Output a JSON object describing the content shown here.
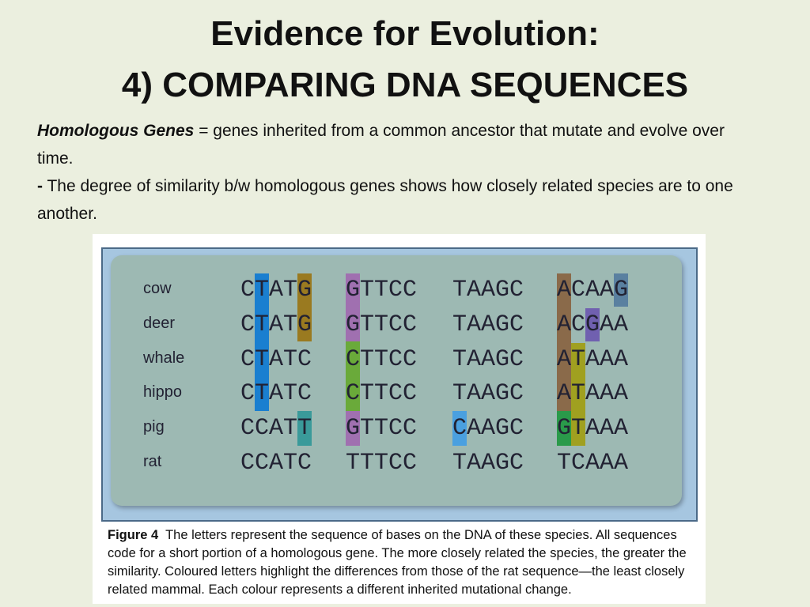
{
  "title": {
    "line1": "Evidence for Evolution:",
    "line2": "4) COMPARING DNA SEQUENCES"
  },
  "paragraphs": [
    {
      "term": "Homologous Genes",
      "text": " = genes inherited from a common ancestor that mutate and evolve over time."
    },
    {
      "term": "-",
      "text": " The degree of similarity b/w homologous genes shows how closely related species are to one another."
    }
  ],
  "figure": {
    "rows": [
      {
        "species": "cow",
        "groups": [
          "CTATG",
          "GTTCC",
          "TAAGC",
          "ACAAG"
        ]
      },
      {
        "species": "deer",
        "groups": [
          "CTATG",
          "GTTCC",
          "TAAGC",
          "ACGAA"
        ]
      },
      {
        "species": "whale",
        "groups": [
          "CTATC",
          "CTTCC",
          "TAAGC",
          "ATAAA"
        ]
      },
      {
        "species": "hippo",
        "groups": [
          "CTATC",
          "CTTCC",
          "TAAGC",
          "ATAAA"
        ]
      },
      {
        "species": "pig",
        "groups": [
          "CCATT",
          "GTTCC",
          "CAAGC",
          "GTAAA"
        ]
      },
      {
        "species": "rat",
        "groups": [
          "CCATC",
          "TTTCC",
          "TAAGC",
          "TCAAA"
        ]
      }
    ],
    "caption_label": "Figure 4",
    "caption": "The letters represent the sequence of bases on the DNA of these species. All sequences code for a short portion of a homologous gene. The more closely related the species, the greater the similarity. Coloured letters highlight the differences from those of the rat sequence—the least closely related mammal. Each colour represents a different inherited mutational change."
  }
}
